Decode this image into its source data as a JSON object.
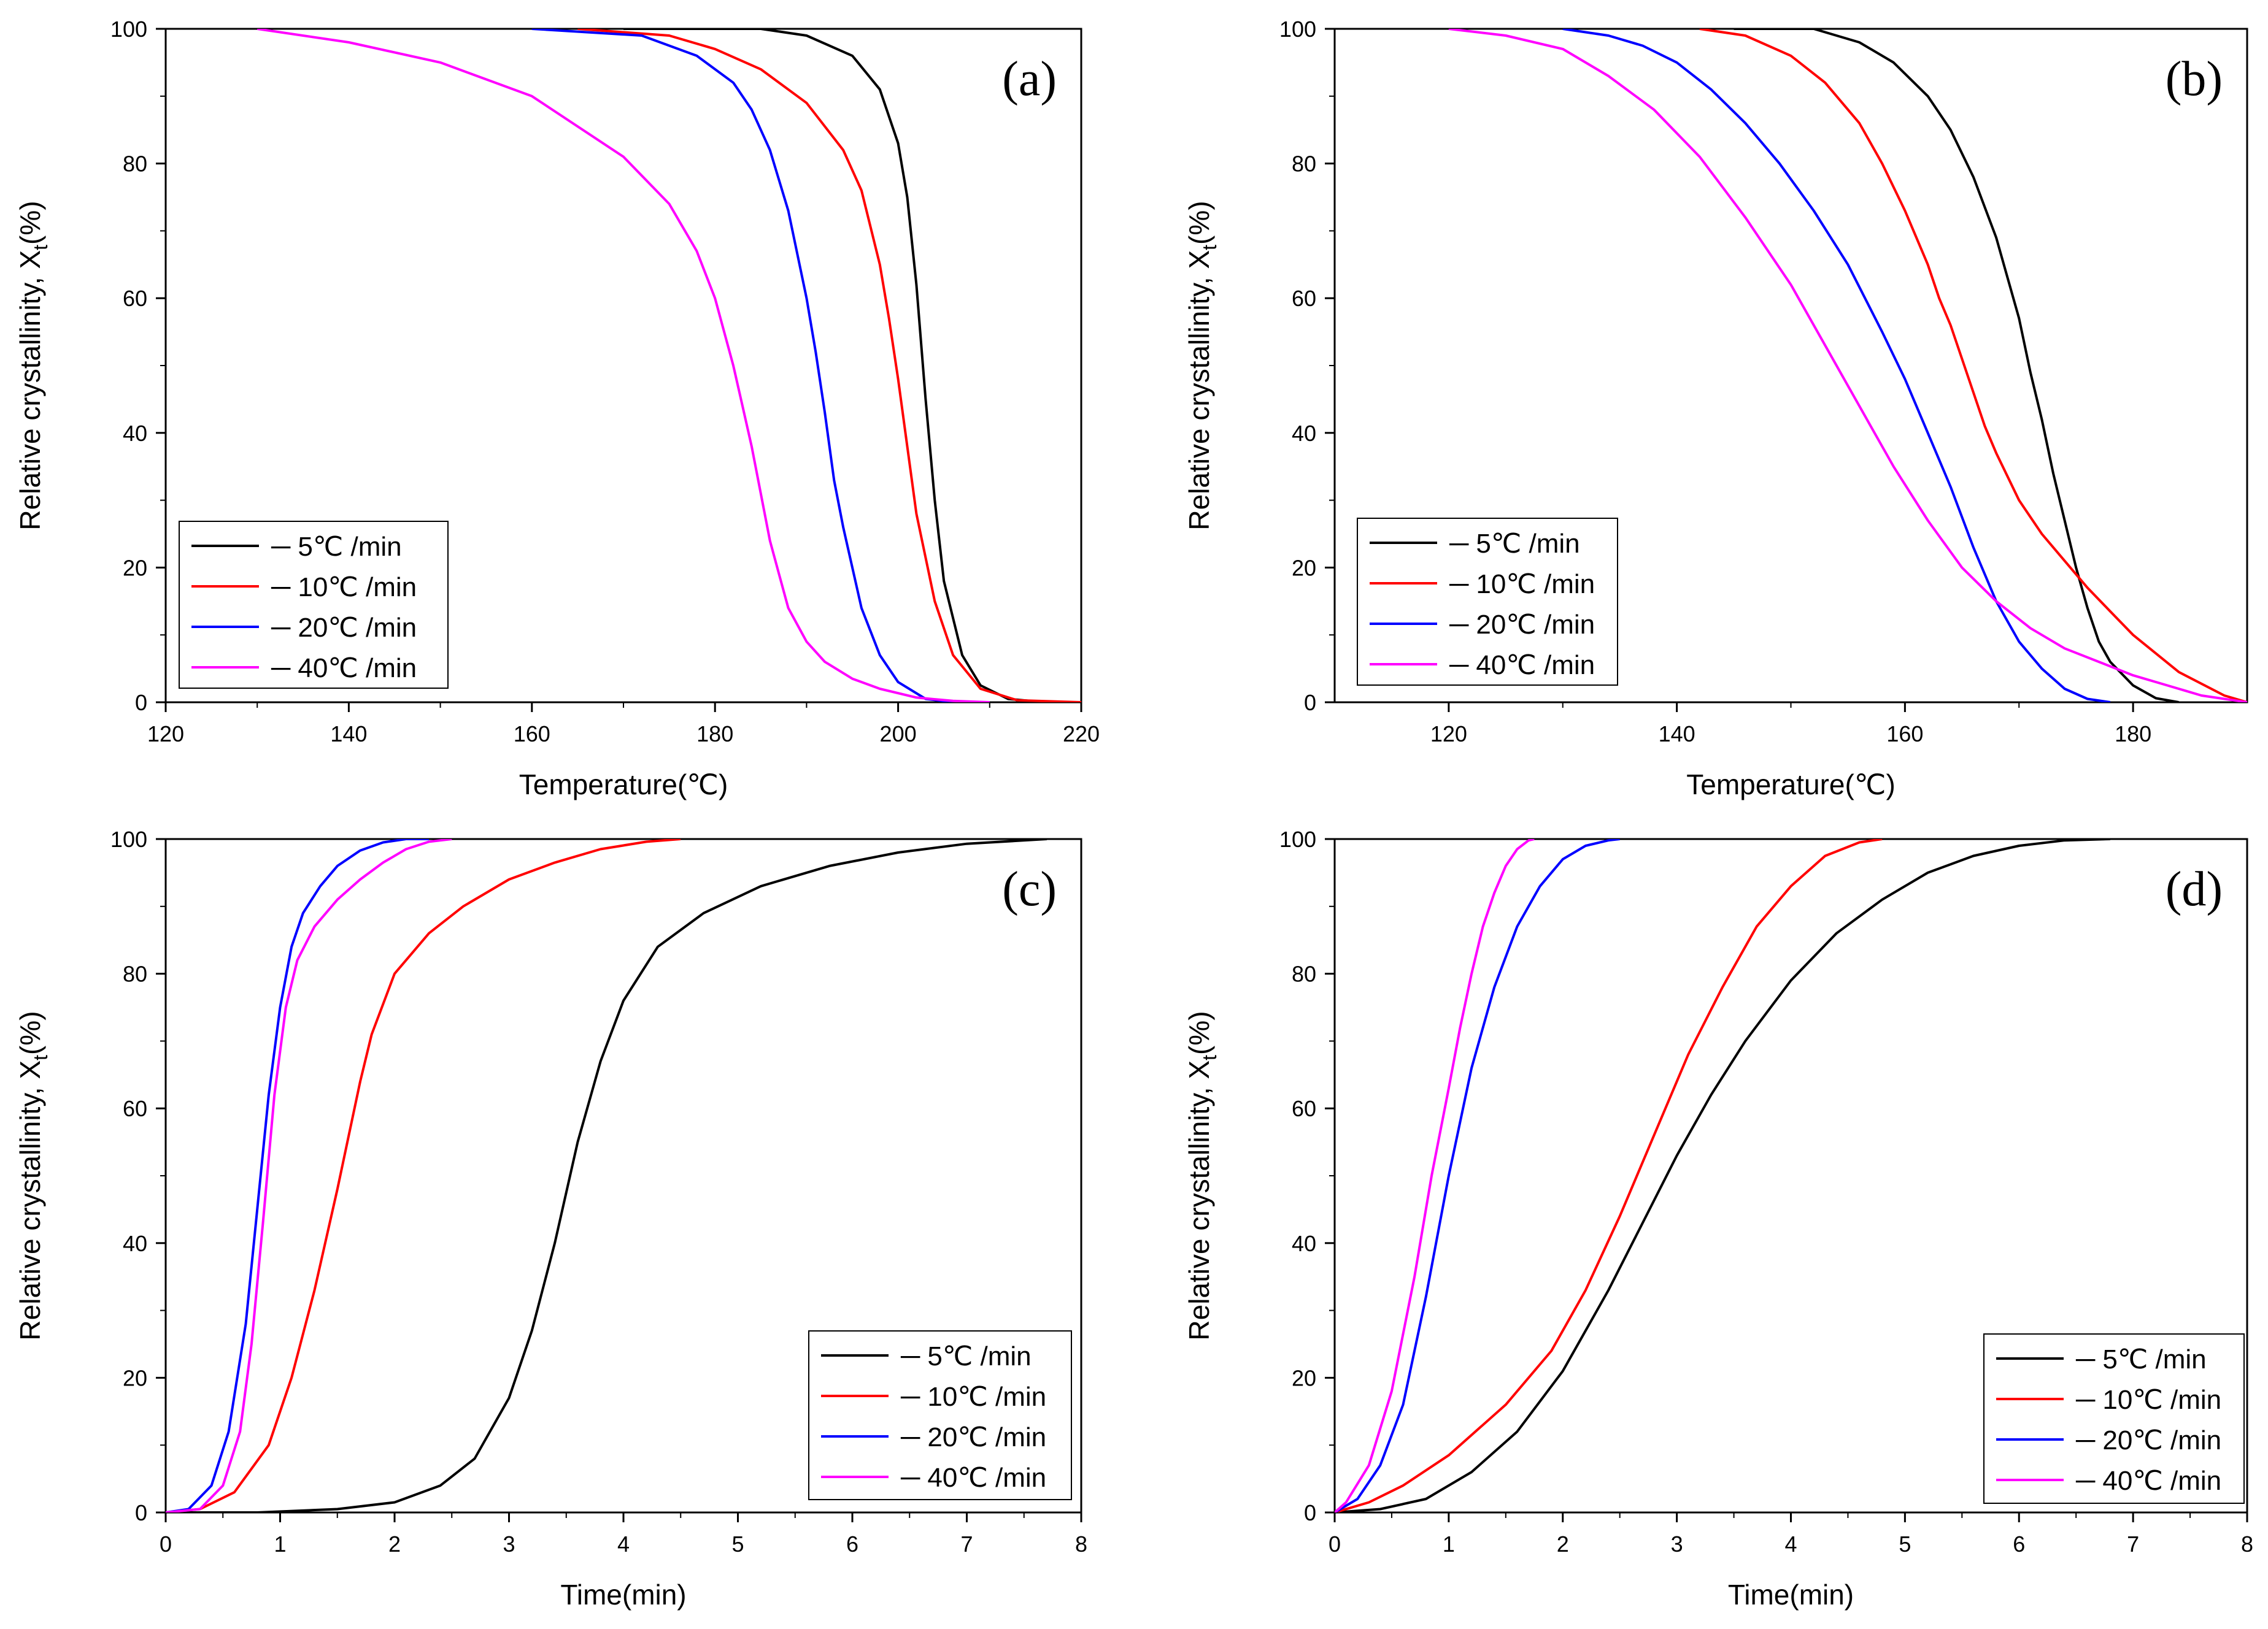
{
  "chart_data": [
    {
      "type": "line",
      "panel_label": "(a)",
      "xlabel": "Temperature(℃)",
      "ylabel": "Relative crystallinity, X",
      "ylabel_sub": "t",
      "ylabel_suffix": "(%)",
      "xlim": [
        120,
        220
      ],
      "ylim": [
        0,
        100
      ],
      "xticks": [
        120,
        140,
        160,
        180,
        200,
        220
      ],
      "yticks": [
        0,
        20,
        40,
        60,
        80,
        100
      ],
      "legend_position": "bottom-left",
      "series": [
        {
          "name": "5℃ /min",
          "legend_label": "─ 5℃ /min",
          "color": "#000000",
          "x": [
            170,
            185,
            190,
            195,
            198,
            200,
            201,
            202,
            203,
            204,
            205,
            207,
            209,
            212,
            216,
            220
          ],
          "y": [
            100,
            100,
            99,
            96,
            91,
            83,
            75,
            62,
            45,
            30,
            18,
            7,
            2.5,
            0.5,
            0,
            0
          ]
        },
        {
          "name": "10℃ /min",
          "legend_label": "─ 10℃ /min",
          "color": "#ff0000",
          "x": [
            165,
            175,
            180,
            185,
            190,
            194,
            196,
            198,
            199,
            200,
            201,
            202,
            204,
            206,
            209,
            213,
            220
          ],
          "y": [
            100,
            99,
            97,
            94,
            89,
            82,
            76,
            65,
            57,
            48,
            38,
            28,
            15,
            7,
            2,
            0.3,
            0
          ]
        },
        {
          "name": "20℃ /min",
          "legend_label": "─ 20℃ /min",
          "color": "#0000ff",
          "x": [
            160,
            172,
            178,
            182,
            184,
            186,
            188,
            190,
            191,
            192,
            193,
            194,
            196,
            198,
            200,
            203,
            206,
            210
          ],
          "y": [
            100,
            99,
            96,
            92,
            88,
            82,
            73,
            60,
            52,
            43,
            33,
            26,
            14,
            7,
            3,
            0.5,
            0,
            0
          ]
        },
        {
          "name": "40℃ /min",
          "legend_label": "─ 40℃ /min",
          "color": "#ff00ff",
          "x": [
            130,
            140,
            150,
            160,
            170,
            175,
            178,
            180,
            182,
            183,
            184,
            185,
            186,
            187,
            188,
            190,
            192,
            195,
            198,
            202,
            206,
            210
          ],
          "y": [
            100,
            98,
            95,
            90,
            81,
            74,
            67,
            60,
            50,
            44,
            38,
            31,
            24,
            19,
            14,
            9,
            6,
            3.5,
            2,
            0.7,
            0.2,
            0
          ]
        }
      ]
    },
    {
      "type": "line",
      "panel_label": "(b)",
      "xlabel": "Temperature(℃)",
      "ylabel": "Relative crystallinity, X",
      "ylabel_sub": "t",
      "ylabel_suffix": "(%)",
      "xlim": [
        110,
        190
      ],
      "ylim": [
        0,
        100
      ],
      "xticks": [
        120,
        140,
        160,
        180
      ],
      "yticks": [
        0,
        20,
        40,
        60,
        80,
        100
      ],
      "legend_position": "bottom-left",
      "series": [
        {
          "name": "5℃ /min",
          "legend_label": "─ 5℃ /min",
          "color": "#000000",
          "x": [
            145,
            152,
            156,
            159,
            162,
            164,
            166,
            168,
            169,
            170,
            171,
            172,
            173,
            174,
            175,
            176,
            177,
            178,
            180,
            182,
            184
          ],
          "y": [
            100,
            100,
            98,
            95,
            90,
            85,
            78,
            69,
            63,
            57,
            49,
            42,
            34,
            27,
            20,
            14,
            9,
            6,
            2.5,
            0.6,
            0
          ]
        },
        {
          "name": "10℃ /min",
          "legend_label": "─ 10℃ /min",
          "color": "#ff0000",
          "x": [
            142,
            146,
            150,
            153,
            156,
            158,
            160,
            162,
            163,
            164,
            165,
            166,
            167,
            168,
            170,
            172,
            174,
            176,
            178,
            180,
            184,
            188,
            190
          ],
          "y": [
            100,
            99,
            96,
            92,
            86,
            80,
            73,
            65,
            60,
            56,
            51,
            46,
            41,
            37,
            30,
            25,
            21,
            17,
            13.5,
            10,
            4.5,
            1,
            0
          ]
        },
        {
          "name": "20℃ /min",
          "legend_label": "─ 20℃ /min",
          "color": "#0000ff",
          "x": [
            130,
            134,
            137,
            140,
            143,
            146,
            149,
            152,
            155,
            158,
            160,
            162,
            164,
            166,
            168,
            170,
            172,
            174,
            176,
            178
          ],
          "y": [
            100,
            99,
            97.5,
            95,
            91,
            86,
            80,
            73,
            65,
            55,
            48,
            40,
            32,
            23,
            15,
            9,
            5,
            2,
            0.5,
            0
          ]
        },
        {
          "name": "40℃ /min",
          "legend_label": "─ 40℃ /min",
          "color": "#ff00ff",
          "x": [
            120,
            125,
            130,
            134,
            138,
            142,
            146,
            150,
            153,
            156,
            159,
            162,
            165,
            168,
            171,
            174,
            177,
            180,
            183,
            186,
            190
          ],
          "y": [
            100,
            99,
            97,
            93,
            88,
            81,
            72,
            62,
            53,
            44,
            35,
            27,
            20,
            15,
            11,
            8,
            6,
            4,
            2.5,
            1,
            0
          ]
        }
      ]
    },
    {
      "type": "line",
      "panel_label": "(c)",
      "xlabel": "Time(min)",
      "ylabel": "Relative crystallinity, X",
      "ylabel_sub": "t",
      "ylabel_suffix": "(%)",
      "xlim": [
        0,
        8
      ],
      "ylim": [
        0,
        100
      ],
      "xticks": [
        0,
        1,
        2,
        3,
        4,
        5,
        6,
        7,
        8
      ],
      "yticks": [
        0,
        20,
        40,
        60,
        80,
        100
      ],
      "legend_position": "bottom-right",
      "series": [
        {
          "name": "5℃ /min",
          "legend_label": "─ 5℃ /min",
          "color": "#000000",
          "x": [
            0,
            0.8,
            1.5,
            2.0,
            2.4,
            2.7,
            3.0,
            3.2,
            3.4,
            3.6,
            3.8,
            4.0,
            4.3,
            4.7,
            5.2,
            5.8,
            6.4,
            7.0,
            7.7
          ],
          "y": [
            0,
            0,
            0.5,
            1.5,
            4,
            8,
            17,
            27,
            40,
            55,
            67,
            76,
            84,
            89,
            93,
            96,
            98,
            99.3,
            100
          ]
        },
        {
          "name": "10℃ /min",
          "legend_label": "─ 10℃ /min",
          "color": "#ff0000",
          "x": [
            0,
            0.3,
            0.6,
            0.9,
            1.1,
            1.3,
            1.5,
            1.6,
            1.7,
            1.8,
            2.0,
            2.3,
            2.6,
            3.0,
            3.4,
            3.8,
            4.2,
            4.5
          ],
          "y": [
            0,
            0.5,
            3,
            10,
            20,
            33,
            48,
            56,
            64,
            71,
            80,
            86,
            90,
            94,
            96.5,
            98.5,
            99.6,
            100
          ]
        },
        {
          "name": "20℃ /min",
          "legend_label": "─ 20℃ /min",
          "color": "#0000ff",
          "x": [
            0,
            0.2,
            0.4,
            0.55,
            0.7,
            0.8,
            0.9,
            1.0,
            1.1,
            1.2,
            1.35,
            1.5,
            1.7,
            1.9,
            2.1,
            2.3
          ],
          "y": [
            0,
            0.5,
            4,
            12,
            28,
            45,
            62,
            75,
            84,
            89,
            93,
            96,
            98.3,
            99.5,
            100,
            100
          ]
        },
        {
          "name": "40℃ /min",
          "legend_label": "─ 40℃ /min",
          "color": "#ff00ff",
          "x": [
            0,
            0.3,
            0.5,
            0.65,
            0.75,
            0.85,
            0.95,
            1.05,
            1.15,
            1.3,
            1.5,
            1.7,
            1.9,
            2.1,
            2.3,
            2.5
          ],
          "y": [
            0,
            0.5,
            4,
            12,
            25,
            43,
            62,
            75,
            82,
            87,
            91,
            94,
            96.5,
            98.5,
            99.6,
            100
          ]
        }
      ]
    },
    {
      "type": "line",
      "panel_label": "(d)",
      "xlabel": "Time(min)",
      "ylabel": "Relative crystallinity, X",
      "ylabel_sub": "t",
      "ylabel_suffix": "(%)",
      "xlim": [
        0,
        8
      ],
      "ylim": [
        0,
        100
      ],
      "xticks": [
        0,
        1,
        2,
        3,
        4,
        5,
        6,
        7,
        8
      ],
      "yticks": [
        0,
        20,
        40,
        60,
        80,
        100
      ],
      "legend_position": "bottom-right",
      "series": [
        {
          "name": "5℃ /min",
          "legend_label": "─ 5℃ /min",
          "color": "#000000",
          "x": [
            0,
            0.4,
            0.8,
            1.2,
            1.6,
            2.0,
            2.4,
            2.7,
            3.0,
            3.3,
            3.6,
            4.0,
            4.4,
            4.8,
            5.2,
            5.6,
            6.0,
            6.4,
            6.8
          ],
          "y": [
            0,
            0.5,
            2,
            6,
            12,
            21,
            33,
            43,
            53,
            62,
            70,
            79,
            86,
            91,
            95,
            97.5,
            99,
            99.8,
            100
          ]
        },
        {
          "name": "10℃ /min",
          "legend_label": "─ 10℃ /min",
          "color": "#ff0000",
          "x": [
            0,
            0.3,
            0.6,
            1.0,
            1.5,
            1.9,
            2.2,
            2.5,
            2.8,
            3.1,
            3.4,
            3.7,
            4.0,
            4.3,
            4.6,
            4.8
          ],
          "y": [
            0,
            1.5,
            4,
            8.5,
            16,
            24,
            33,
            44,
            56,
            68,
            78,
            87,
            93,
            97.5,
            99.5,
            100
          ]
        },
        {
          "name": "20℃ /min",
          "legend_label": "─ 20℃ /min",
          "color": "#0000ff",
          "x": [
            0,
            0.2,
            0.4,
            0.6,
            0.8,
            1.0,
            1.2,
            1.4,
            1.6,
            1.8,
            2.0,
            2.2,
            2.4,
            2.5
          ],
          "y": [
            0,
            2,
            7,
            16,
            32,
            50,
            66,
            78,
            87,
            93,
            97,
            99,
            99.8,
            100
          ]
        },
        {
          "name": "40℃ /min",
          "legend_label": "─ 40℃ /min",
          "color": "#ff00ff",
          "x": [
            0,
            0.1,
            0.3,
            0.5,
            0.7,
            0.85,
            1.0,
            1.1,
            1.2,
            1.3,
            1.4,
            1.5,
            1.6,
            1.7,
            1.75
          ],
          "y": [
            0,
            1.5,
            7,
            18,
            35,
            50,
            63,
            72,
            80,
            87,
            92,
            96,
            98.5,
            99.8,
            100
          ]
        }
      ]
    }
  ]
}
